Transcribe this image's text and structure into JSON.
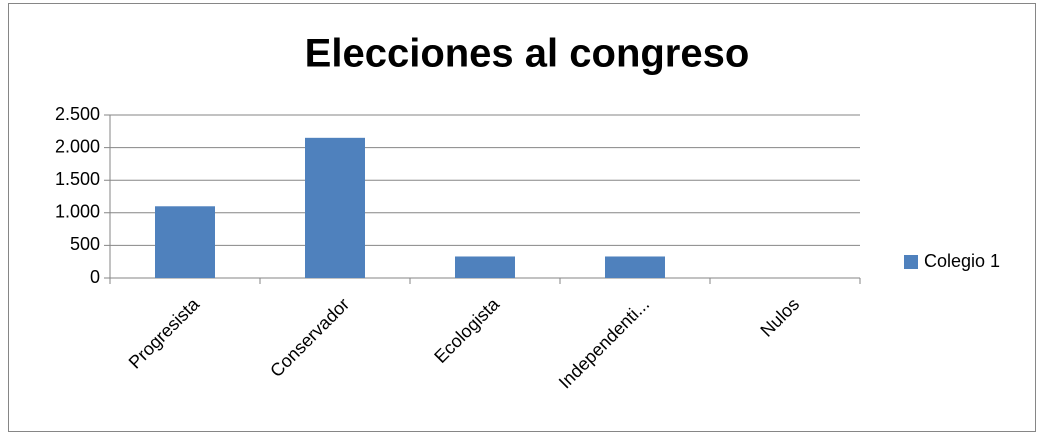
{
  "chart_data": {
    "type": "bar",
    "title": "Elecciones al congreso",
    "categories": [
      "Progresista",
      "Conservador",
      "Ecologista",
      "Independenti...",
      "Nulos"
    ],
    "series": [
      {
        "name": "Colegio 1",
        "color": "#4f81bd",
        "values": [
          1100,
          2150,
          330,
          330,
          0
        ]
      }
    ],
    "ylim": [
      0,
      2500
    ],
    "yticks": [
      0,
      500,
      {
        "value": 1000,
        "label": "1.000"
      },
      {
        "value": 1500,
        "label": "1.500"
      },
      {
        "value": 2000,
        "label": "2.000"
      },
      {
        "value": 2500,
        "label": "2.500"
      }
    ],
    "grid": true,
    "legend": "right"
  }
}
